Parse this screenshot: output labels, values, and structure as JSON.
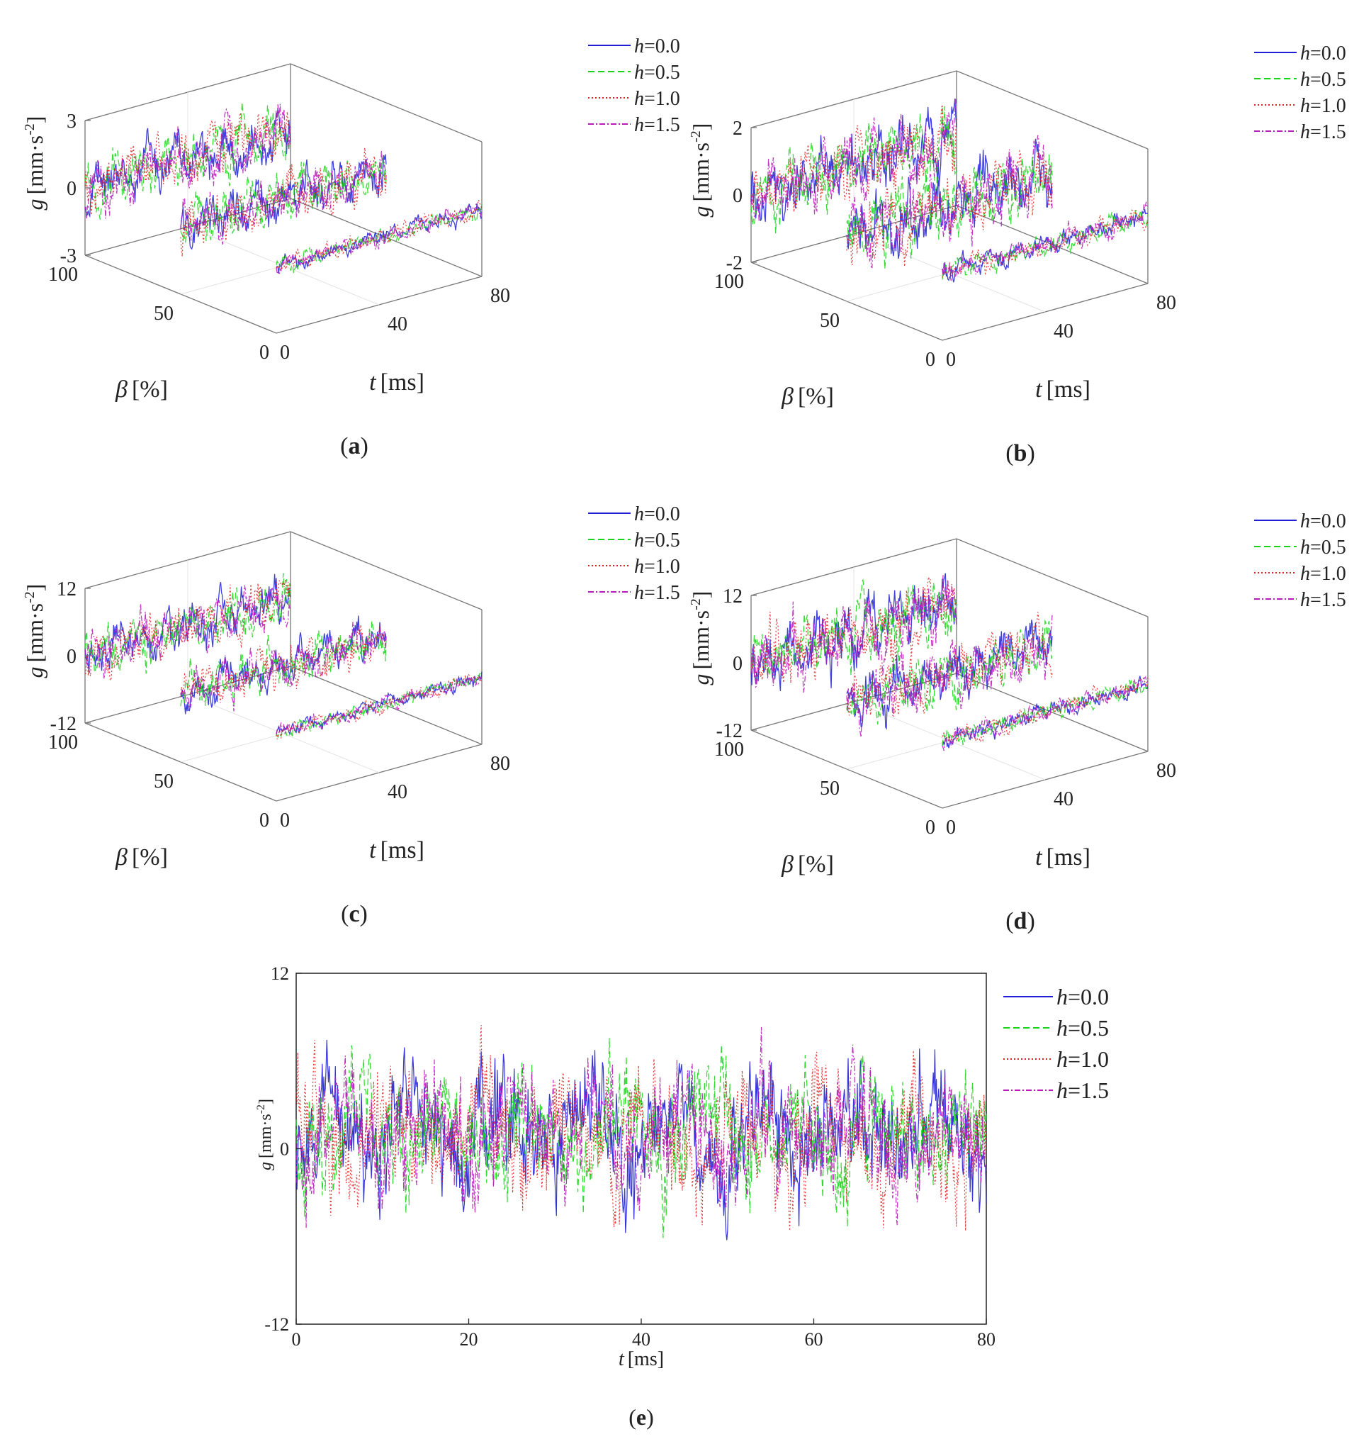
{
  "figure": {
    "legend_labels": [
      "h=0.0",
      "h=0.5",
      "h=1.0",
      "h=1.5"
    ],
    "legend_var": "h",
    "legend_values": [
      "=0.0",
      "=0.5",
      "=1.0",
      "=1.5"
    ],
    "series_colors": [
      "#1f1fd6",
      "#19d419",
      "#e02020",
      "#b81ab8"
    ],
    "series_dash": [
      "solid",
      "dashed",
      "dotted",
      "dashdot"
    ]
  },
  "chart_data": [
    {
      "id": "a",
      "type": "line-3d-waterfall",
      "label_text": "a",
      "zlabel_var": "g",
      "zlabel_unit": "[mm·s",
      "zlabel_exp": "-2",
      "zlabel_close": "]",
      "xlabel_var": "t",
      "xlabel_unit": "[ms]",
      "ylabel_var": "β",
      "ylabel_unit": "[%]",
      "z_ticks": [
        "3",
        "0",
        "-3"
      ],
      "zlim": [
        -3,
        3
      ],
      "t_ticks": [
        "0",
        "40",
        "80"
      ],
      "tlim": [
        0,
        80
      ],
      "beta_ticks": [
        "100",
        "50",
        "0"
      ],
      "beta_slices": [
        100,
        50,
        0
      ],
      "series": [
        "h=0.0",
        "h=0.5",
        "h=1.0",
        "h=1.5"
      ],
      "amplitudes": [
        1.1,
        1.0,
        0.35
      ]
    },
    {
      "id": "b",
      "type": "line-3d-waterfall",
      "label_text": "b",
      "zlabel_var": "g",
      "zlabel_unit": "[mm·s",
      "zlabel_exp": "-2",
      "zlabel_close": "]",
      "xlabel_var": "t",
      "xlabel_unit": "[ms]",
      "ylabel_var": "β",
      "ylabel_unit": "[%]",
      "z_ticks": [
        "2",
        "0",
        "-2"
      ],
      "zlim": [
        -2,
        2
      ],
      "t_ticks": [
        "0",
        "40",
        "80"
      ],
      "tlim": [
        0,
        80
      ],
      "beta_ticks": [
        "100",
        "50",
        "0"
      ],
      "beta_slices": [
        100,
        50,
        0
      ],
      "series": [
        "h=0.0",
        "h=0.5",
        "h=1.0",
        "h=1.5"
      ],
      "amplitudes": [
        0.9,
        0.9,
        0.3
      ]
    },
    {
      "id": "c",
      "type": "line-3d-waterfall",
      "label_text": "c",
      "zlabel_var": "g",
      "zlabel_unit": "[mm·s",
      "zlabel_exp": "-2",
      "zlabel_close": "]",
      "xlabel_var": "t",
      "xlabel_unit": "[ms]",
      "ylabel_var": "β",
      "ylabel_unit": "[%]",
      "z_ticks": [
        "12",
        "0",
        "-12"
      ],
      "zlim": [
        -12,
        12
      ],
      "t_ticks": [
        "0",
        "40",
        "80"
      ],
      "tlim": [
        0,
        80
      ],
      "beta_ticks": [
        "100",
        "50",
        "0"
      ],
      "beta_slices": [
        100,
        50,
        0
      ],
      "series": [
        "h=0.0",
        "h=0.5",
        "h=1.0",
        "h=1.5"
      ],
      "amplitudes": [
        4.0,
        3.5,
        1.2
      ]
    },
    {
      "id": "d",
      "type": "line-3d-waterfall",
      "label_text": "d",
      "zlabel_var": "g",
      "zlabel_unit": "[mm·s",
      "zlabel_exp": "-2",
      "zlabel_close": "]",
      "xlabel_var": "t",
      "xlabel_unit": "[ms]",
      "ylabel_var": "β",
      "ylabel_unit": "[%]",
      "z_ticks": [
        "12",
        "0",
        "-12"
      ],
      "zlim": [
        -12,
        12
      ],
      "t_ticks": [
        "0",
        "40",
        "80"
      ],
      "tlim": [
        0,
        80
      ],
      "beta_ticks": [
        "100",
        "50",
        "0"
      ],
      "beta_slices": [
        100,
        50,
        0
      ],
      "series": [
        "h=0.0",
        "h=0.5",
        "h=1.0",
        "h=1.5"
      ],
      "amplitudes": [
        5.5,
        4.5,
        1.5
      ]
    },
    {
      "id": "e",
      "type": "line",
      "label_text": "e",
      "ylabel_var": "g",
      "ylabel_unit": "[mm·s",
      "ylabel_exp": "-2",
      "ylabel_close": "]",
      "xlabel_var": "t",
      "xlabel_unit": "[ms]",
      "x_ticks": [
        "0",
        "20",
        "40",
        "60",
        "80"
      ],
      "xlim": [
        0,
        80
      ],
      "y_ticks": [
        "12",
        "0",
        "-12"
      ],
      "ylim": [
        -12,
        12
      ],
      "series": [
        "h=0.0",
        "h=0.5",
        "h=1.0",
        "h=1.5"
      ]
    }
  ]
}
